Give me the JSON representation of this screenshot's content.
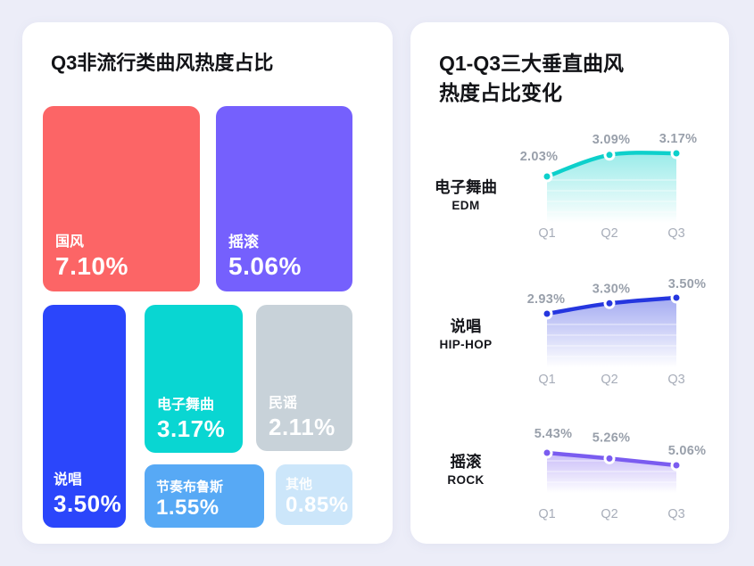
{
  "background_color": "#ecedf8",
  "cards": {
    "left": {
      "title": "Q3非流行类曲风热度占比"
    },
    "right": {
      "title_line1": "Q1-Q3三大垂直曲风",
      "title_line2": "热度占比变化"
    }
  },
  "chart_data": [
    {
      "type": "treemap",
      "title": "Q3非流行类曲风热度占比",
      "unit": "%",
      "categories": [
        "国风",
        "摇滚",
        "说唱",
        "电子舞曲",
        "民谣",
        "节奏布鲁斯",
        "其他"
      ],
      "values": [
        7.1,
        5.06,
        3.5,
        3.17,
        2.11,
        1.55,
        0.85
      ],
      "value_labels": [
        "7.10%",
        "5.06%",
        "3.50%",
        "3.17%",
        "2.11%",
        "1.55%",
        "0.85%"
      ],
      "colors": [
        "#fc6566",
        "#7560fd",
        "#2b46fb",
        "#09d6d2",
        "#c8d2d9",
        "#57a9f5",
        "#cce6fa"
      ],
      "text_color": "#ffffff"
    },
    {
      "type": "line",
      "title": "Q1-Q3三大垂直曲风热度占比变化",
      "unit": "%",
      "categories": [
        "Q1",
        "Q2",
        "Q3"
      ],
      "legend_position": "left",
      "area_fill": true,
      "data_labels": true,
      "grid": false,
      "series": [
        {
          "name": "电子舞曲",
          "name_en": "EDM",
          "values": [
            2.03,
            3.09,
            3.17
          ],
          "value_labels": [
            "2.03%",
            "3.09%",
            "3.17%"
          ],
          "color": "#0dd0cb"
        },
        {
          "name": "说唱",
          "name_en": "HIP-HOP",
          "values": [
            2.93,
            3.3,
            3.5
          ],
          "value_labels": [
            "2.93%",
            "3.30%",
            "3.50%"
          ],
          "color": "#2536df"
        },
        {
          "name": "摇滚",
          "name_en": "ROCK",
          "values": [
            5.43,
            5.26,
            5.06
          ],
          "value_labels": [
            "5.43%",
            "5.26%",
            "5.06%"
          ],
          "color": "#7a5cf0"
        }
      ],
      "label_color": "#99a0ab",
      "axis_label_color": "#a7adb9"
    }
  ]
}
